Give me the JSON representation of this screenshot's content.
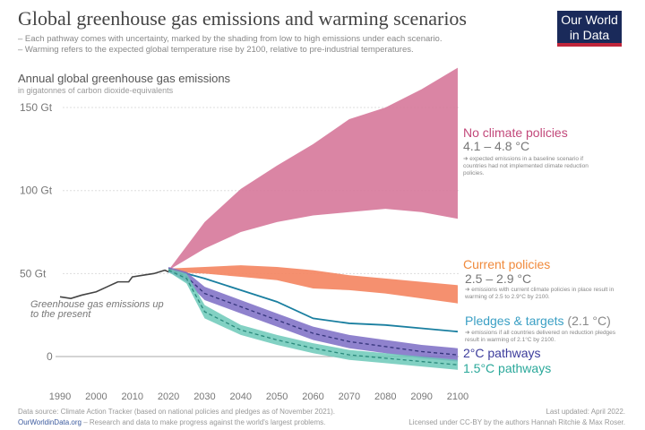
{
  "title": "Global greenhouse gas emissions and warming scenarios",
  "subtitles": [
    "– Each pathway comes with uncertainty, marked by the shading from low to high emissions under each scenario.",
    "– Warming refers to the expected global temperature rise by 2100, relative to pre-industrial temperatures."
  ],
  "logo": {
    "line1": "Our World",
    "line2": "in Data"
  },
  "footer": {
    "source": "Data source: Climate Action Tracker (based on national policies and pledges as of November 2021).",
    "site": "OurWorldinData.org",
    "site_desc": " – Research and data to make progress against the world's largest problems.",
    "updated": "Last updated: April 2022.",
    "license": "Licensed under CC-BY by the authors Hannah Ritchie & Max Roser."
  },
  "chart_data": {
    "type": "area",
    "ylabel": "Annual global greenhouse gas emissions",
    "ylabel_sub": "in gigatonnes of carbon dioxide-equivalents",
    "ylim": [
      -10,
      160
    ],
    "xlim": [
      1990,
      2100
    ],
    "yticks": [
      {
        "v": 0,
        "label": "0"
      },
      {
        "v": 50,
        "label": "50 Gt"
      },
      {
        "v": 100,
        "label": "100 Gt"
      },
      {
        "v": 150,
        "label": "150 Gt"
      }
    ],
    "xticks": [
      1990,
      2000,
      2010,
      2020,
      2030,
      2040,
      2050,
      2060,
      2070,
      2080,
      2090,
      2100
    ],
    "history": {
      "label": "Greenhouse gas emissions up to the present",
      "color": "#444444",
      "x": [
        1990,
        1993,
        1996,
        2000,
        2003,
        2006,
        2009,
        2010,
        2013,
        2016,
        2019,
        2020
      ],
      "y": [
        36,
        35,
        37,
        39,
        42,
        45,
        45,
        48,
        49,
        50,
        52,
        51
      ]
    },
    "scenarios": [
      {
        "name": "No climate policies",
        "warming": "4.1 – 4.8 °C",
        "note": "➔ expected emissions in a baseline scenario if countries had not implemented climate reduction policies.",
        "color": "#d6789a",
        "x": [
          2020,
          2030,
          2040,
          2050,
          2060,
          2070,
          2080,
          2090,
          2100
        ],
        "low": [
          52,
          65,
          75,
          81,
          85,
          87,
          89,
          87,
          83
        ],
        "high": [
          52,
          81,
          101,
          115,
          128,
          143,
          150,
          161,
          174
        ]
      },
      {
        "name": "Current policies",
        "warming": "2.5 – 2.9 °C",
        "note": "➔ emissions with current climate policies in place result in warming of 2.5 to 2.9°C by 2100.",
        "color": "#f4845f",
        "labelcolor": "#f08a3c",
        "x": [
          2020,
          2030,
          2040,
          2050,
          2060,
          2070,
          2080,
          2090,
          2100
        ],
        "low": [
          51,
          50,
          48,
          46,
          41,
          40,
          38,
          35,
          32
        ],
        "high": [
          53,
          54,
          55,
          54,
          52,
          49,
          47,
          45,
          43
        ]
      },
      {
        "name": "Pledges & targets",
        "warming": "(2.1 °C)",
        "note": "➔ emissions if all countries delivered on reduction pledges result in warming of 2.1°C by 2100.",
        "color": "#1a7fa0",
        "labelcolor": "#3a9fc4",
        "x": [
          2020,
          2025,
          2030,
          2040,
          2050,
          2060,
          2070,
          2080,
          2090,
          2100
        ],
        "y": [
          51,
          50,
          47,
          40,
          33,
          23,
          20,
          19,
          17,
          15
        ]
      },
      {
        "name": "2°C pathways",
        "color": "#7b6cc4",
        "labelcolor": "#3c3c9c",
        "x": [
          2020,
          2025,
          2030,
          2040,
          2050,
          2060,
          2070,
          2080,
          2090,
          2100
        ],
        "low": [
          51,
          45,
          34,
          26,
          18,
          10,
          5,
          2,
          -1,
          -3
        ],
        "mid": [
          53,
          48,
          38,
          30,
          22,
          14,
          9,
          6,
          3,
          1
        ],
        "high": [
          54,
          51,
          42,
          34,
          26,
          18,
          13,
          10,
          7,
          5
        ]
      },
      {
        "name": "1.5°C pathways",
        "color": "#6cc9b9",
        "labelcolor": "#2aa89a",
        "x": [
          2020,
          2025,
          2030,
          2040,
          2050,
          2060,
          2070,
          2080,
          2090,
          2100
        ],
        "low": [
          51,
          44,
          23,
          13,
          7,
          2,
          -2,
          -4,
          -6,
          -8
        ],
        "mid": [
          52,
          47,
          27,
          16,
          10,
          5,
          1,
          -1,
          -3,
          -5
        ],
        "high": [
          53,
          50,
          31,
          19,
          13,
          8,
          4,
          2,
          0,
          -2
        ]
      }
    ]
  }
}
